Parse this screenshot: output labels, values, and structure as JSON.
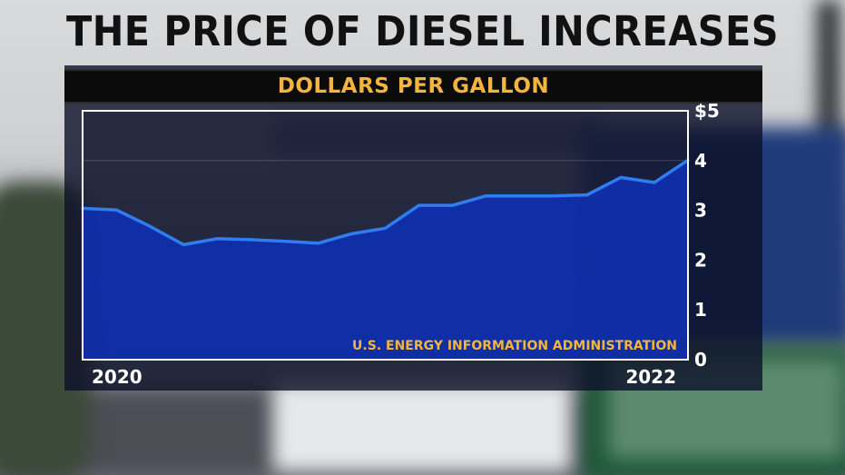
{
  "headline": "THE PRICE OF DIESEL INCREASES",
  "colors": {
    "line": "#2f7df0",
    "area": "#0f2fae",
    "frame": "#ffffff",
    "subtitle": "#f3b53c",
    "source": "#f3b53c"
  },
  "chart_data": {
    "type": "area",
    "title": "DOLLARS PER GALLON",
    "xlabel": "",
    "ylabel": "",
    "x_tick_labels": [
      "2020",
      "2022"
    ],
    "y_tick_labels": [
      "$5",
      "4",
      "3",
      "2",
      "1",
      "0"
    ],
    "ylim": [
      0,
      5
    ],
    "grid": false,
    "annotation": "U.S. ENERGY INFORMATION ADMINISTRATION",
    "series": [
      {
        "values": [
          3.04,
          3.01,
          2.68,
          2.31,
          2.43,
          2.41,
          2.38,
          2.34,
          2.53,
          2.64,
          3.1,
          3.1,
          3.29,
          3.29,
          3.29,
          3.31,
          3.66,
          3.56,
          4.01
        ]
      }
    ]
  }
}
